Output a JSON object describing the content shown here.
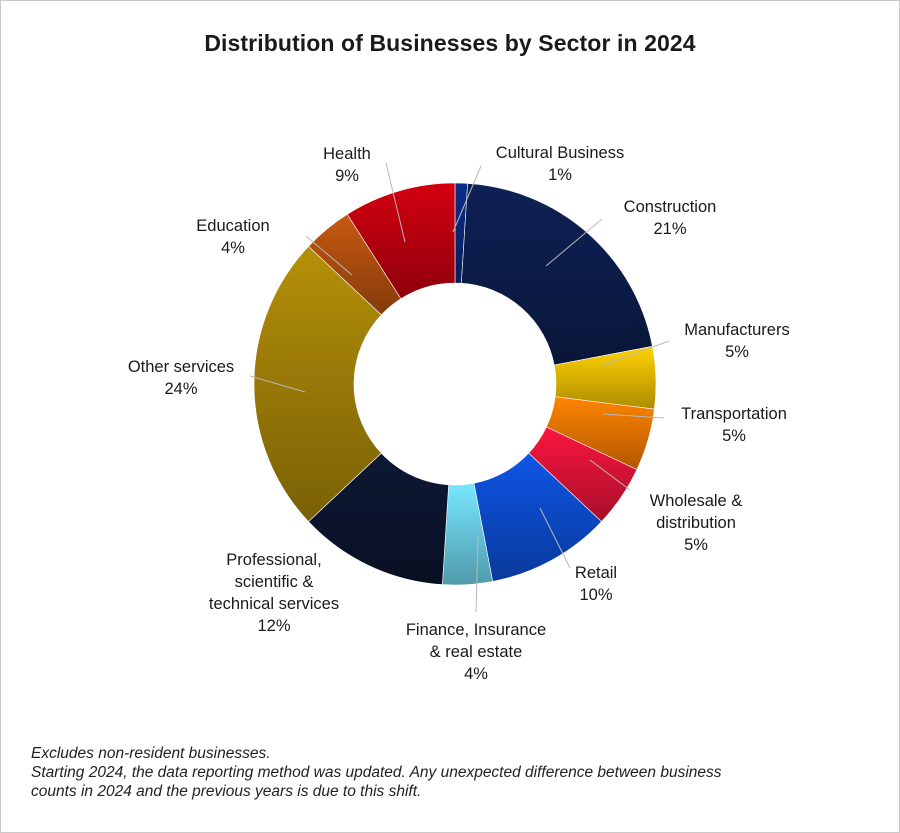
{
  "chart_data": {
    "type": "pie",
    "title": "Distribution of Businesses by Sector in 2024",
    "slices": [
      {
        "label": [
          "Cultural Business"
        ],
        "percent_label": "1%",
        "value": 1,
        "color": "#0a2a80"
      },
      {
        "label": [
          "Construction"
        ],
        "percent_label": "21%",
        "value": 21,
        "color": "#0d1f4f"
      },
      {
        "label": [
          "Manufacturers"
        ],
        "percent_label": "5%",
        "value": 5,
        "color": "#f2c200"
      },
      {
        "label": [
          "Transportation"
        ],
        "percent_label": "5%",
        "value": 5,
        "color": "#f57a00"
      },
      {
        "label": [
          "Wholesale &",
          "distribution"
        ],
        "percent_label": "5%",
        "value": 5,
        "color": "#e8143a"
      },
      {
        "label": [
          "Retail"
        ],
        "percent_label": "10%",
        "value": 10,
        "color": "#0d4fd6"
      },
      {
        "label": [
          "Finance, Insurance",
          "& real estate"
        ],
        "percent_label": "4%",
        "value": 4,
        "color": "#6fd6ee"
      },
      {
        "label": [
          "Professional,",
          "scientific &",
          "technical services"
        ],
        "percent_label": "12%",
        "value": 12,
        "color": "#0c1630"
      },
      {
        "label": [
          "Other services"
        ],
        "percent_label": "24%",
        "value": 24,
        "color": "#a88508"
      },
      {
        "label": [
          "Education"
        ],
        "percent_label": "4%",
        "value": 4,
        "color": "#b8520f"
      },
      {
        "label": [
          "Health"
        ],
        "percent_label": "9%",
        "value": 9,
        "color": "#c4000f"
      }
    ]
  },
  "footnote": {
    "line1": "Excludes non-resident businesses.",
    "line2": "Starting 2024, the data reporting method was updated. Any unexpected difference between business",
    "line3": "counts in 2024 and the previous years is due to this shift."
  }
}
